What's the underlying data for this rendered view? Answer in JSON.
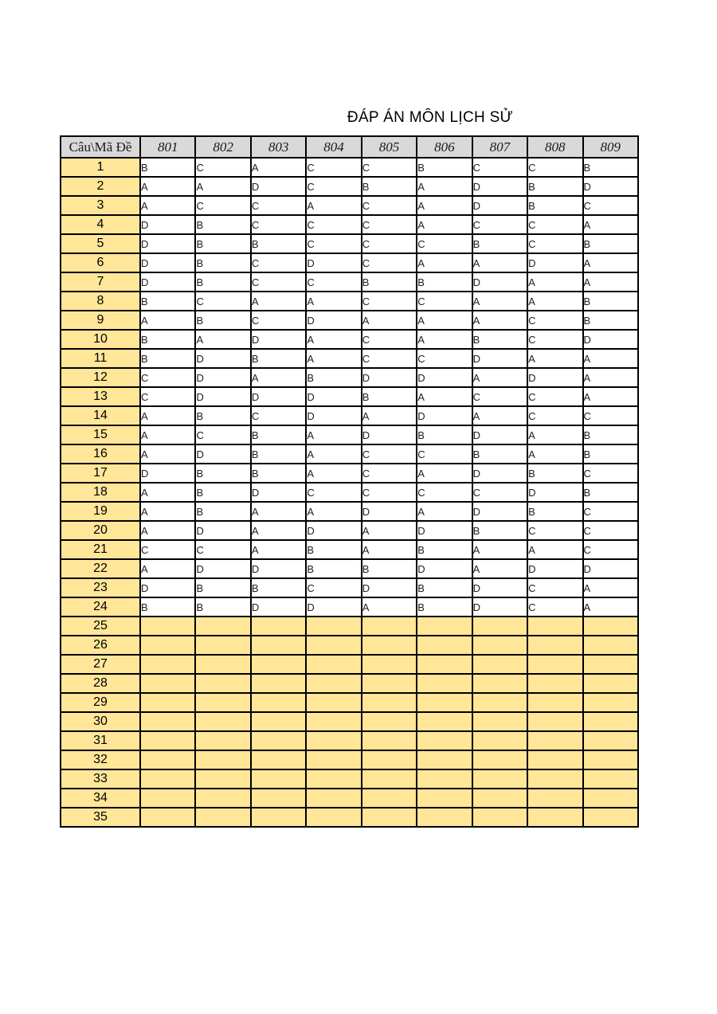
{
  "title": "ĐÁP ÁN MÔN LỊCH SỬ",
  "colors": {
    "header_bg": "#d9d9d9",
    "question_col_bg": "#ffe699",
    "border": "#000000"
  },
  "table": {
    "corner_label": "Câu\\Mã Đề",
    "exam_codes": [
      "801",
      "802",
      "803",
      "804",
      "805",
      "806",
      "807",
      "808",
      "809"
    ],
    "answer_rows": [
      {
        "question": "1",
        "answers": [
          "B",
          "C",
          "A",
          "C",
          "C",
          "B",
          "C",
          "C",
          "B"
        ]
      },
      {
        "question": "2",
        "answers": [
          "A",
          "A",
          "D",
          "C",
          "B",
          "A",
          "D",
          "B",
          "D"
        ]
      },
      {
        "question": "3",
        "answers": [
          "A",
          "C",
          "C",
          "A",
          "C",
          "A",
          "D",
          "B",
          "C"
        ]
      },
      {
        "question": "4",
        "answers": [
          "D",
          "B",
          "C",
          "C",
          "C",
          "A",
          "C",
          "C",
          "A"
        ]
      },
      {
        "question": "5",
        "answers": [
          "D",
          "B",
          "B",
          "C",
          "C",
          "C",
          "B",
          "C",
          "B"
        ]
      },
      {
        "question": "6",
        "answers": [
          "D",
          "B",
          "C",
          "D",
          "C",
          "A",
          "A",
          "D",
          "A"
        ]
      },
      {
        "question": "7",
        "answers": [
          "D",
          "B",
          "C",
          "C",
          "B",
          "B",
          "D",
          "A",
          "A"
        ]
      },
      {
        "question": "8",
        "answers": [
          "B",
          "C",
          "A",
          "A",
          "C",
          "C",
          "A",
          "A",
          "B"
        ]
      },
      {
        "question": "9",
        "answers": [
          "A",
          "B",
          "C",
          "D",
          "A",
          "A",
          "A",
          "C",
          "B"
        ]
      },
      {
        "question": "10",
        "answers": [
          "B",
          "A",
          "D",
          "A",
          "C",
          "A",
          "B",
          "C",
          "D"
        ]
      },
      {
        "question": "11",
        "answers": [
          "B",
          "D",
          "B",
          "A",
          "C",
          "C",
          "D",
          "A",
          "A"
        ]
      },
      {
        "question": "12",
        "answers": [
          "C",
          "D",
          "A",
          "B",
          "D",
          "D",
          "A",
          "D",
          "A"
        ]
      },
      {
        "question": "13",
        "answers": [
          "C",
          "D",
          "D",
          "D",
          "B",
          "A",
          "C",
          "C",
          "A"
        ]
      },
      {
        "question": "14",
        "answers": [
          "A",
          "B",
          "C",
          "D",
          "A",
          "D",
          "A",
          "C",
          "C"
        ]
      },
      {
        "question": "15",
        "answers": [
          "A",
          "C",
          "B",
          "A",
          "D",
          "B",
          "D",
          "A",
          "B"
        ]
      },
      {
        "question": "16",
        "answers": [
          "A",
          "D",
          "B",
          "A",
          "C",
          "C",
          "B",
          "A",
          "B"
        ]
      },
      {
        "question": "17",
        "answers": [
          "D",
          "B",
          "B",
          "A",
          "C",
          "A",
          "D",
          "B",
          "C"
        ]
      },
      {
        "question": "18",
        "answers": [
          "A",
          "B",
          "D",
          "C",
          "C",
          "C",
          "C",
          "D",
          "B"
        ]
      },
      {
        "question": "19",
        "answers": [
          "A",
          "B",
          "A",
          "A",
          "D",
          "A",
          "D",
          "B",
          "C"
        ]
      },
      {
        "question": "20",
        "answers": [
          "A",
          "D",
          "A",
          "D",
          "A",
          "D",
          "B",
          "C",
          "C"
        ]
      },
      {
        "question": "21",
        "answers": [
          "C",
          "C",
          "A",
          "B",
          "A",
          "B",
          "A",
          "A",
          "C"
        ]
      },
      {
        "question": "22",
        "answers": [
          "A",
          "D",
          "D",
          "B",
          "B",
          "D",
          "A",
          "D",
          "D"
        ]
      },
      {
        "question": "23",
        "answers": [
          "D",
          "B",
          "B",
          "C",
          "D",
          "B",
          "D",
          "C",
          "A"
        ]
      },
      {
        "question": "24",
        "answers": [
          "B",
          "B",
          "D",
          "D",
          "A",
          "B",
          "D",
          "C",
          "A"
        ]
      }
    ],
    "empty_rows": [
      "25",
      "26",
      "27",
      "28",
      "29",
      "30",
      "31",
      "32",
      "33",
      "34",
      "35"
    ]
  }
}
